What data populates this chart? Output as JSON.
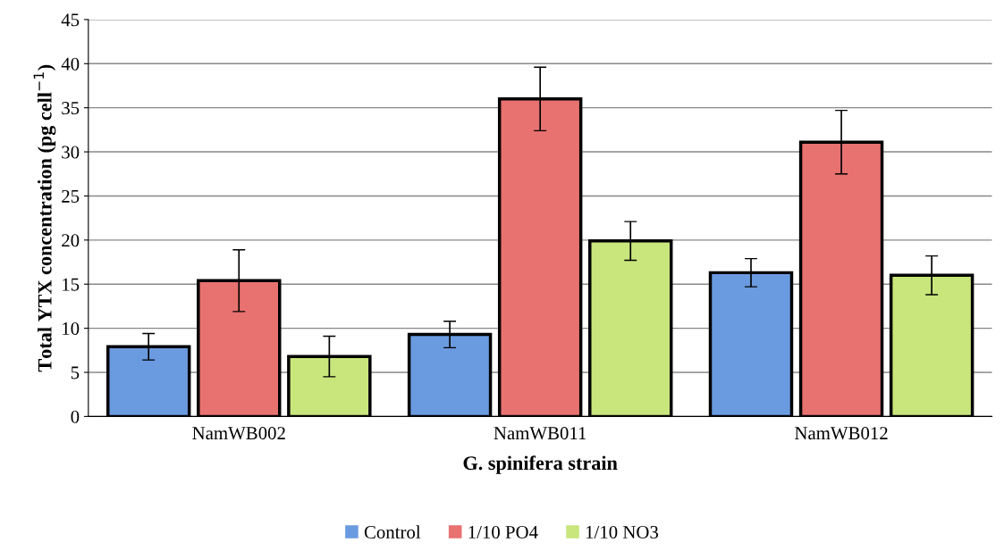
{
  "chart_data": {
    "type": "bar",
    "xlabel": "G. spinifera strain",
    "ylabel": "Total YTX concentration (pg cell$^{−1}$)",
    "categories": [
      "NamWB002",
      "NamWB011",
      "NamWB012"
    ],
    "series": [
      {
        "name": "Control",
        "color": "#6a9be0",
        "values": [
          7.9,
          9.3,
          16.3
        ],
        "errors": [
          1.5,
          1.5,
          1.6
        ]
      },
      {
        "name": "1/10 PO4",
        "color": "#e87270",
        "values": [
          15.4,
          36.0,
          31.1
        ],
        "errors": [
          3.5,
          3.6,
          3.6
        ]
      },
      {
        "name": "1/10 NO3",
        "color": "#c8e67c",
        "values": [
          6.8,
          19.9,
          16.0
        ],
        "errors": [
          2.3,
          2.2,
          2.2
        ]
      }
    ],
    "ylim": [
      0,
      45
    ],
    "yticks": [
      0,
      5,
      10,
      15,
      20,
      25,
      30,
      35,
      40,
      45
    ],
    "grid": "y",
    "legend": "bottom"
  }
}
